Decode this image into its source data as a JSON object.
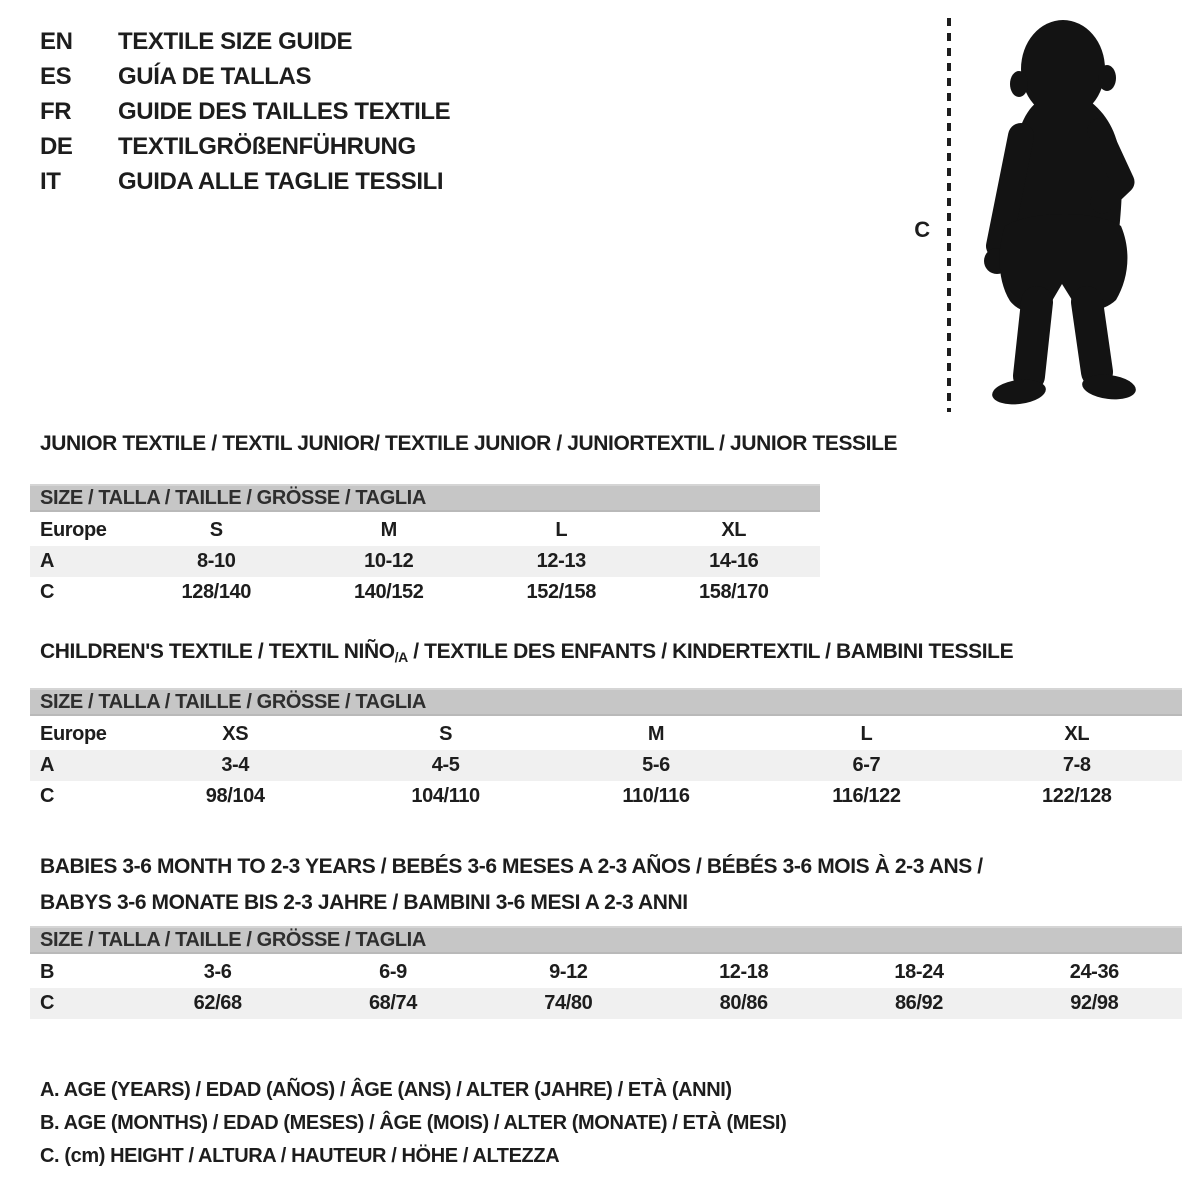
{
  "colors": {
    "text": "#1d1d1d",
    "table_header_bg": "#c6c6c6",
    "row_shade_bg": "#f0f0f0",
    "silhouette": "#131313"
  },
  "languages": [
    {
      "code": "EN",
      "label": "TEXTILE SIZE GUIDE"
    },
    {
      "code": "ES",
      "label": "GUÍA DE TALLAS"
    },
    {
      "code": "FR",
      "label": "GUIDE DES TAILLES TEXTILE"
    },
    {
      "code": "DE",
      "label": "TEXTILGRÖßENFÜHRUNG"
    },
    {
      "code": "IT",
      "label": "GUIDA ALLE TAGLIE TESSILI"
    }
  ],
  "figure": {
    "height_label": "C",
    "image_description": "toddler-silhouette"
  },
  "sections": {
    "junior": {
      "title": "JUNIOR TEXTILE / TEXTIL JUNIOR/ TEXTILE JUNIOR / JUNIORTEXTIL / JUNIOR TESSILE",
      "table": {
        "header": "SIZE / TALLA / TAILLE / GRÖSSE / TAGLIA",
        "rows": [
          {
            "label": "Europe",
            "cells": [
              "S",
              "M",
              "L",
              "XL"
            ],
            "shade": false
          },
          {
            "label": "A",
            "cells": [
              "8-10",
              "10-12",
              "12-13",
              "14-16"
            ],
            "shade": true
          },
          {
            "label": "C",
            "cells": [
              "128/140",
              "140/152",
              "152/158",
              "158/170"
            ],
            "shade": false
          }
        ]
      }
    },
    "children": {
      "title_part1": "CHILDREN'S TEXTILE / TEXTIL NIÑO",
      "title_sub": "/A",
      "title_part2": " / TEXTILE DES ENFANTS / KINDERTEXTIL / BAMBINI TESSILE",
      "table": {
        "header": "SIZE / TALLA / TAILLE / GRÖSSE / TAGLIA",
        "rows": [
          {
            "label": "Europe",
            "cells": [
              "XS",
              "S",
              "M",
              "L",
              "XL"
            ],
            "shade": false
          },
          {
            "label": "A",
            "cells": [
              "3-4",
              "4-5",
              "5-6",
              "6-7",
              "7-8"
            ],
            "shade": true
          },
          {
            "label": "C",
            "cells": [
              "98/104",
              "104/110",
              "110/116",
              "116/122",
              "122/128"
            ],
            "shade": false
          }
        ]
      }
    },
    "babies": {
      "title_line1": "BABIES 3-6 MONTH TO 2-3 YEARS / BEBÉS 3-6 MESES A 2-3 AÑOS / BÉBÉS 3-6 MOIS À 2-3 ANS /",
      "title_line2": "BABYS 3-6 MONATE BIS 2-3 JAHRE / BAMBINI 3-6 MESI A 2-3 ANNI",
      "table": {
        "header": "SIZE / TALLA / TAILLE / GRÖSSE / TAGLIA",
        "rows": [
          {
            "label": "B",
            "cells": [
              "3-6",
              "6-9",
              "9-12",
              "12-18",
              "18-24",
              "24-36"
            ],
            "shade": false
          },
          {
            "label": "C",
            "cells": [
              "62/68",
              "68/74",
              "74/80",
              "80/86",
              "86/92",
              "92/98"
            ],
            "shade": true
          }
        ]
      }
    }
  },
  "legend": [
    "A. AGE (YEARS) / EDAD (AÑOS) / ÂGE (ANS) / ALTER (JAHRE) / ETÀ (ANNI)",
    "B. AGE (MONTHS) / EDAD (MESES) / ÂGE (MOIS) / ALTER (MONATE) / ETÀ (MESI)",
    "C. (cm) HEIGHT / ALTURA / HAUTEUR / HÖHE / ALTEZZA"
  ]
}
